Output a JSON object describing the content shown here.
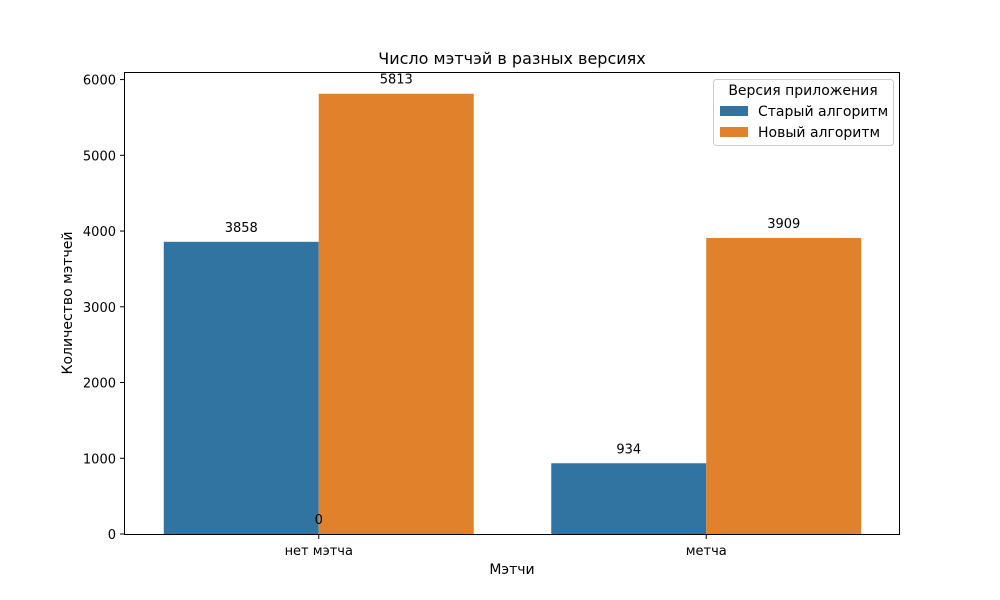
{
  "chart_data": {
    "type": "bar",
    "title": "Число мэтчэй в разных версиях",
    "xlabel": "Мэтчи",
    "ylabel": "Количество мэтчей",
    "categories": [
      "нет мэтча",
      "метча"
    ],
    "series": [
      {
        "name": "Старый алгоритм",
        "color": "#3274a1",
        "values": [
          3858,
          934
        ]
      },
      {
        "name": "Новый алгоритм",
        "color": "#e1812c",
        "values": [
          5813,
          3909
        ]
      }
    ],
    "bar_labels": [
      "3858",
      "934",
      "5813",
      "3909",
      "0"
    ],
    "ylim": [
      0,
      6100
    ],
    "yticks": [
      0,
      1000,
      2000,
      3000,
      4000,
      5000,
      6000
    ],
    "legend": {
      "title": "Версия приложения",
      "placement": "top-right"
    },
    "grid": false
  }
}
